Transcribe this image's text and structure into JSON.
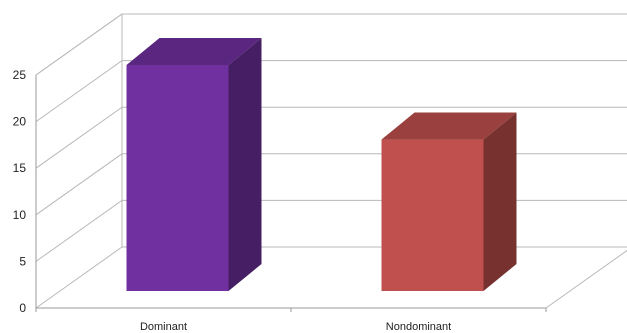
{
  "chart_data": {
    "type": "bar",
    "style": "3d-column",
    "categories": [
      "Dominant",
      "Nondominant"
    ],
    "series": [
      {
        "values": [
          25,
          17
        ]
      }
    ],
    "colors": [
      "#7030a0",
      "#c0504d"
    ],
    "ylim": [
      0,
      25
    ],
    "yticks": [
      0,
      5,
      10,
      15,
      20,
      25
    ],
    "grid": true,
    "legend": "none",
    "title": "",
    "xlabel": "",
    "ylabel": ""
  }
}
